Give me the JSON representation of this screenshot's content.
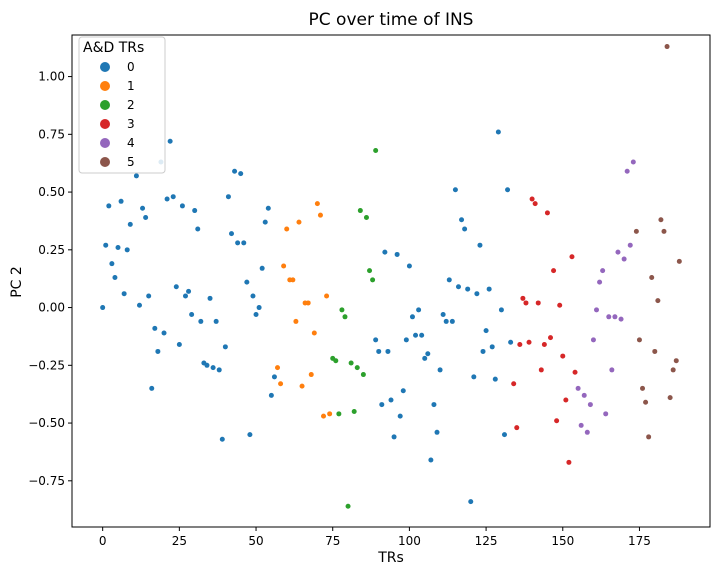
{
  "chart_data": {
    "type": "scatter",
    "title": "PC over time of INS",
    "xlabel": "TRs",
    "ylabel": "PC 2",
    "xlim": [
      -10,
      198
    ],
    "ylim": [
      -0.95,
      1.18
    ],
    "xticks": [
      0,
      25,
      50,
      75,
      100,
      125,
      150,
      175
    ],
    "xtick_labels": [
      "0",
      "25",
      "50",
      "75",
      "100",
      "125",
      "150",
      "175"
    ],
    "yticks": [
      -0.75,
      -0.5,
      -0.25,
      0.0,
      0.25,
      0.5,
      0.75,
      1.0
    ],
    "ytick_labels": [
      "−0.75",
      "−0.50",
      "−0.25",
      "0.00",
      "0.25",
      "0.50",
      "0.75",
      "1.00"
    ],
    "grid": false,
    "legend": {
      "title": "A&D TRs",
      "placement": "top-left",
      "entries": [
        "0",
        "1",
        "2",
        "3",
        "4",
        "5"
      ]
    },
    "series": [
      {
        "name": "0",
        "color": "#1f77b4",
        "points": [
          [
            0,
            0.0
          ],
          [
            1,
            0.27
          ],
          [
            2,
            0.44
          ],
          [
            3,
            0.19
          ],
          [
            4,
            0.13
          ],
          [
            5,
            0.26
          ],
          [
            6,
            0.46
          ],
          [
            7,
            0.06
          ],
          [
            8,
            0.25
          ],
          [
            9,
            0.36
          ],
          [
            11,
            0.57
          ],
          [
            12,
            0.01
          ],
          [
            13,
            0.43
          ],
          [
            14,
            0.39
          ],
          [
            15,
            0.05
          ],
          [
            16,
            -0.35
          ],
          [
            17,
            -0.09
          ],
          [
            18,
            -0.19
          ],
          [
            19,
            0.63
          ],
          [
            20,
            -0.11
          ],
          [
            21,
            0.47
          ],
          [
            22,
            0.72
          ],
          [
            23,
            0.48
          ],
          [
            24,
            0.09
          ],
          [
            25,
            -0.16
          ],
          [
            26,
            0.44
          ],
          [
            27,
            0.05
          ],
          [
            28,
            0.07
          ],
          [
            29,
            -0.03
          ],
          [
            30,
            0.42
          ],
          [
            31,
            0.34
          ],
          [
            32,
            -0.06
          ],
          [
            33,
            -0.24
          ],
          [
            34,
            -0.25
          ],
          [
            35,
            0.04
          ],
          [
            36,
            -0.26
          ],
          [
            37,
            -0.06
          ],
          [
            38,
            -0.27
          ],
          [
            39,
            -0.57
          ],
          [
            40,
            -0.17
          ],
          [
            41,
            0.48
          ],
          [
            42,
            0.32
          ],
          [
            43,
            0.59
          ],
          [
            44,
            0.28
          ],
          [
            45,
            0.58
          ],
          [
            46,
            0.28
          ],
          [
            47,
            0.11
          ],
          [
            48,
            -0.55
          ],
          [
            49,
            0.05
          ],
          [
            50,
            -0.03
          ],
          [
            51,
            0.0
          ],
          [
            52,
            0.17
          ],
          [
            53,
            0.37
          ],
          [
            54,
            0.43
          ],
          [
            55,
            -0.38
          ],
          [
            56,
            -0.3
          ],
          [
            89,
            -0.14
          ],
          [
            90,
            -0.19
          ],
          [
            91,
            -0.42
          ],
          [
            92,
            0.24
          ],
          [
            93,
            -0.19
          ],
          [
            94,
            -0.4
          ],
          [
            95,
            -0.56
          ],
          [
            96,
            0.23
          ],
          [
            97,
            -0.47
          ],
          [
            98,
            -0.36
          ],
          [
            99,
            -0.14
          ],
          [
            100,
            0.18
          ],
          [
            101,
            -0.04
          ],
          [
            102,
            -0.12
          ],
          [
            103,
            -0.01
          ],
          [
            104,
            -0.12
          ],
          [
            105,
            -0.22
          ],
          [
            106,
            -0.2
          ],
          [
            107,
            -0.66
          ],
          [
            108,
            -0.42
          ],
          [
            109,
            -0.54
          ],
          [
            110,
            -0.27
          ],
          [
            111,
            -0.03
          ],
          [
            112,
            -0.06
          ],
          [
            113,
            0.12
          ],
          [
            114,
            -0.06
          ],
          [
            115,
            0.51
          ],
          [
            116,
            0.09
          ],
          [
            117,
            0.38
          ],
          [
            118,
            0.34
          ],
          [
            119,
            0.08
          ],
          [
            120,
            -0.84
          ],
          [
            121,
            -0.3
          ],
          [
            122,
            0.06
          ],
          [
            123,
            0.27
          ],
          [
            124,
            -0.19
          ],
          [
            125,
            -0.1
          ],
          [
            126,
            0.08
          ],
          [
            127,
            -0.17
          ],
          [
            128,
            -0.31
          ],
          [
            129,
            0.76
          ],
          [
            130,
            -0.01
          ],
          [
            131,
            -0.55
          ],
          [
            132,
            0.51
          ],
          [
            133,
            -0.15
          ]
        ]
      },
      {
        "name": "1",
        "color": "#ff7f0e",
        "points": [
          [
            57,
            -0.26
          ],
          [
            58,
            -0.33
          ],
          [
            59,
            0.18
          ],
          [
            60,
            0.34
          ],
          [
            61,
            0.12
          ],
          [
            62,
            0.12
          ],
          [
            63,
            -0.06
          ],
          [
            64,
            0.37
          ],
          [
            65,
            -0.34
          ],
          [
            66,
            0.02
          ],
          [
            67,
            0.02
          ],
          [
            68,
            -0.29
          ],
          [
            69,
            -0.11
          ],
          [
            70,
            0.45
          ],
          [
            71,
            0.4
          ],
          [
            72,
            -0.47
          ],
          [
            73,
            0.05
          ],
          [
            74,
            -0.46
          ]
        ]
      },
      {
        "name": "2",
        "color": "#2ca02c",
        "points": [
          [
            75,
            -0.22
          ],
          [
            76,
            -0.23
          ],
          [
            77,
            -0.46
          ],
          [
            78,
            -0.01
          ],
          [
            79,
            -0.04
          ],
          [
            80,
            -0.86
          ],
          [
            81,
            -0.24
          ],
          [
            82,
            -0.45
          ],
          [
            83,
            -0.26
          ],
          [
            84,
            0.42
          ],
          [
            85,
            -0.29
          ],
          [
            86,
            0.39
          ],
          [
            87,
            0.16
          ],
          [
            88,
            0.12
          ],
          [
            89,
            0.68
          ]
        ]
      },
      {
        "name": "3",
        "color": "#d62728",
        "points": [
          [
            134,
            -0.33
          ],
          [
            135,
            -0.52
          ],
          [
            136,
            -0.16
          ],
          [
            137,
            0.04
          ],
          [
            138,
            0.02
          ],
          [
            139,
            -0.15
          ],
          [
            140,
            0.47
          ],
          [
            141,
            0.45
          ],
          [
            142,
            0.02
          ],
          [
            143,
            -0.27
          ],
          [
            144,
            -0.16
          ],
          [
            145,
            0.41
          ],
          [
            146,
            -0.13
          ],
          [
            147,
            0.16
          ],
          [
            148,
            -0.49
          ],
          [
            149,
            0.01
          ],
          [
            150,
            -0.21
          ],
          [
            151,
            -0.4
          ],
          [
            152,
            -0.67
          ],
          [
            153,
            0.22
          ],
          [
            154,
            -0.28
          ]
        ]
      },
      {
        "name": "4",
        "color": "#9467bd",
        "points": [
          [
            155,
            -0.35
          ],
          [
            156,
            -0.51
          ],
          [
            157,
            -0.38
          ],
          [
            158,
            -0.54
          ],
          [
            159,
            -0.42
          ],
          [
            160,
            -0.14
          ],
          [
            161,
            -0.01
          ],
          [
            162,
            0.11
          ],
          [
            163,
            0.16
          ],
          [
            164,
            -0.46
          ],
          [
            165,
            -0.04
          ],
          [
            166,
            -0.27
          ],
          [
            167,
            -0.04
          ],
          [
            168,
            0.24
          ],
          [
            169,
            -0.05
          ],
          [
            170,
            0.21
          ],
          [
            171,
            0.59
          ],
          [
            172,
            0.27
          ],
          [
            173,
            0.63
          ]
        ]
      },
      {
        "name": "5",
        "color": "#8c564b",
        "points": [
          [
            174,
            0.33
          ],
          [
            175,
            -0.14
          ],
          [
            176,
            -0.35
          ],
          [
            177,
            -0.41
          ],
          [
            178,
            -0.56
          ],
          [
            179,
            0.13
          ],
          [
            180,
            -0.19
          ],
          [
            181,
            0.03
          ],
          [
            182,
            0.38
          ],
          [
            183,
            0.33
          ],
          [
            184,
            1.13
          ],
          [
            185,
            -0.39
          ],
          [
            186,
            -0.27
          ],
          [
            187,
            -0.23
          ],
          [
            188,
            0.2
          ]
        ]
      }
    ]
  }
}
